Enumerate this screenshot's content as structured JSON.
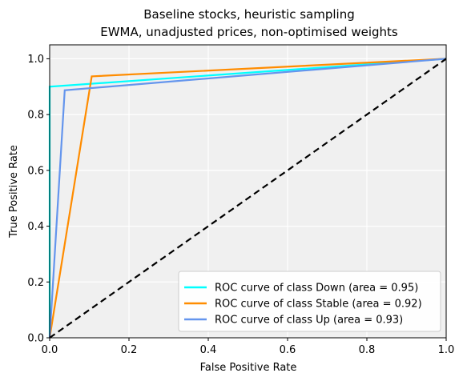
{
  "chart_data": {
    "type": "line",
    "title": [
      "Baseline stocks, heuristic sampling",
      "EWMA, unadjusted prices, non-optimised weights"
    ],
    "xlabel": "False Positive Rate",
    "ylabel": "True Positive Rate",
    "xlim": [
      0.0,
      1.0
    ],
    "ylim": [
      0.0,
      1.05
    ],
    "xticks": [
      "0.0",
      "0.2",
      "0.4",
      "0.6",
      "0.8",
      "1.0"
    ],
    "yticks": [
      "0.0",
      "0.2",
      "0.4",
      "0.6",
      "0.8",
      "1.0"
    ],
    "grid": true,
    "legend_position": "lower-right",
    "series": [
      {
        "name": "ROC curve of class Down (area = 0.95)",
        "color": "#00ffff",
        "x": [
          0.0,
          0.0,
          1.0
        ],
        "y": [
          0.0,
          0.9,
          1.0
        ]
      },
      {
        "name": "ROC curve of class Stable (area = 0.92)",
        "color": "#ff8c00",
        "x": [
          0.0,
          0.106,
          1.0
        ],
        "y": [
          0.0,
          0.937,
          1.0
        ]
      },
      {
        "name": "ROC curve of class Up (area = 0.93)",
        "color": "#6495ed",
        "x": [
          0.0,
          0.038,
          1.0
        ],
        "y": [
          0.0,
          0.887,
          1.0
        ]
      }
    ],
    "reference_line": {
      "style": "dashed",
      "color": "#000000",
      "x": [
        0.0,
        1.0
      ],
      "y": [
        0.0,
        1.0
      ]
    }
  }
}
